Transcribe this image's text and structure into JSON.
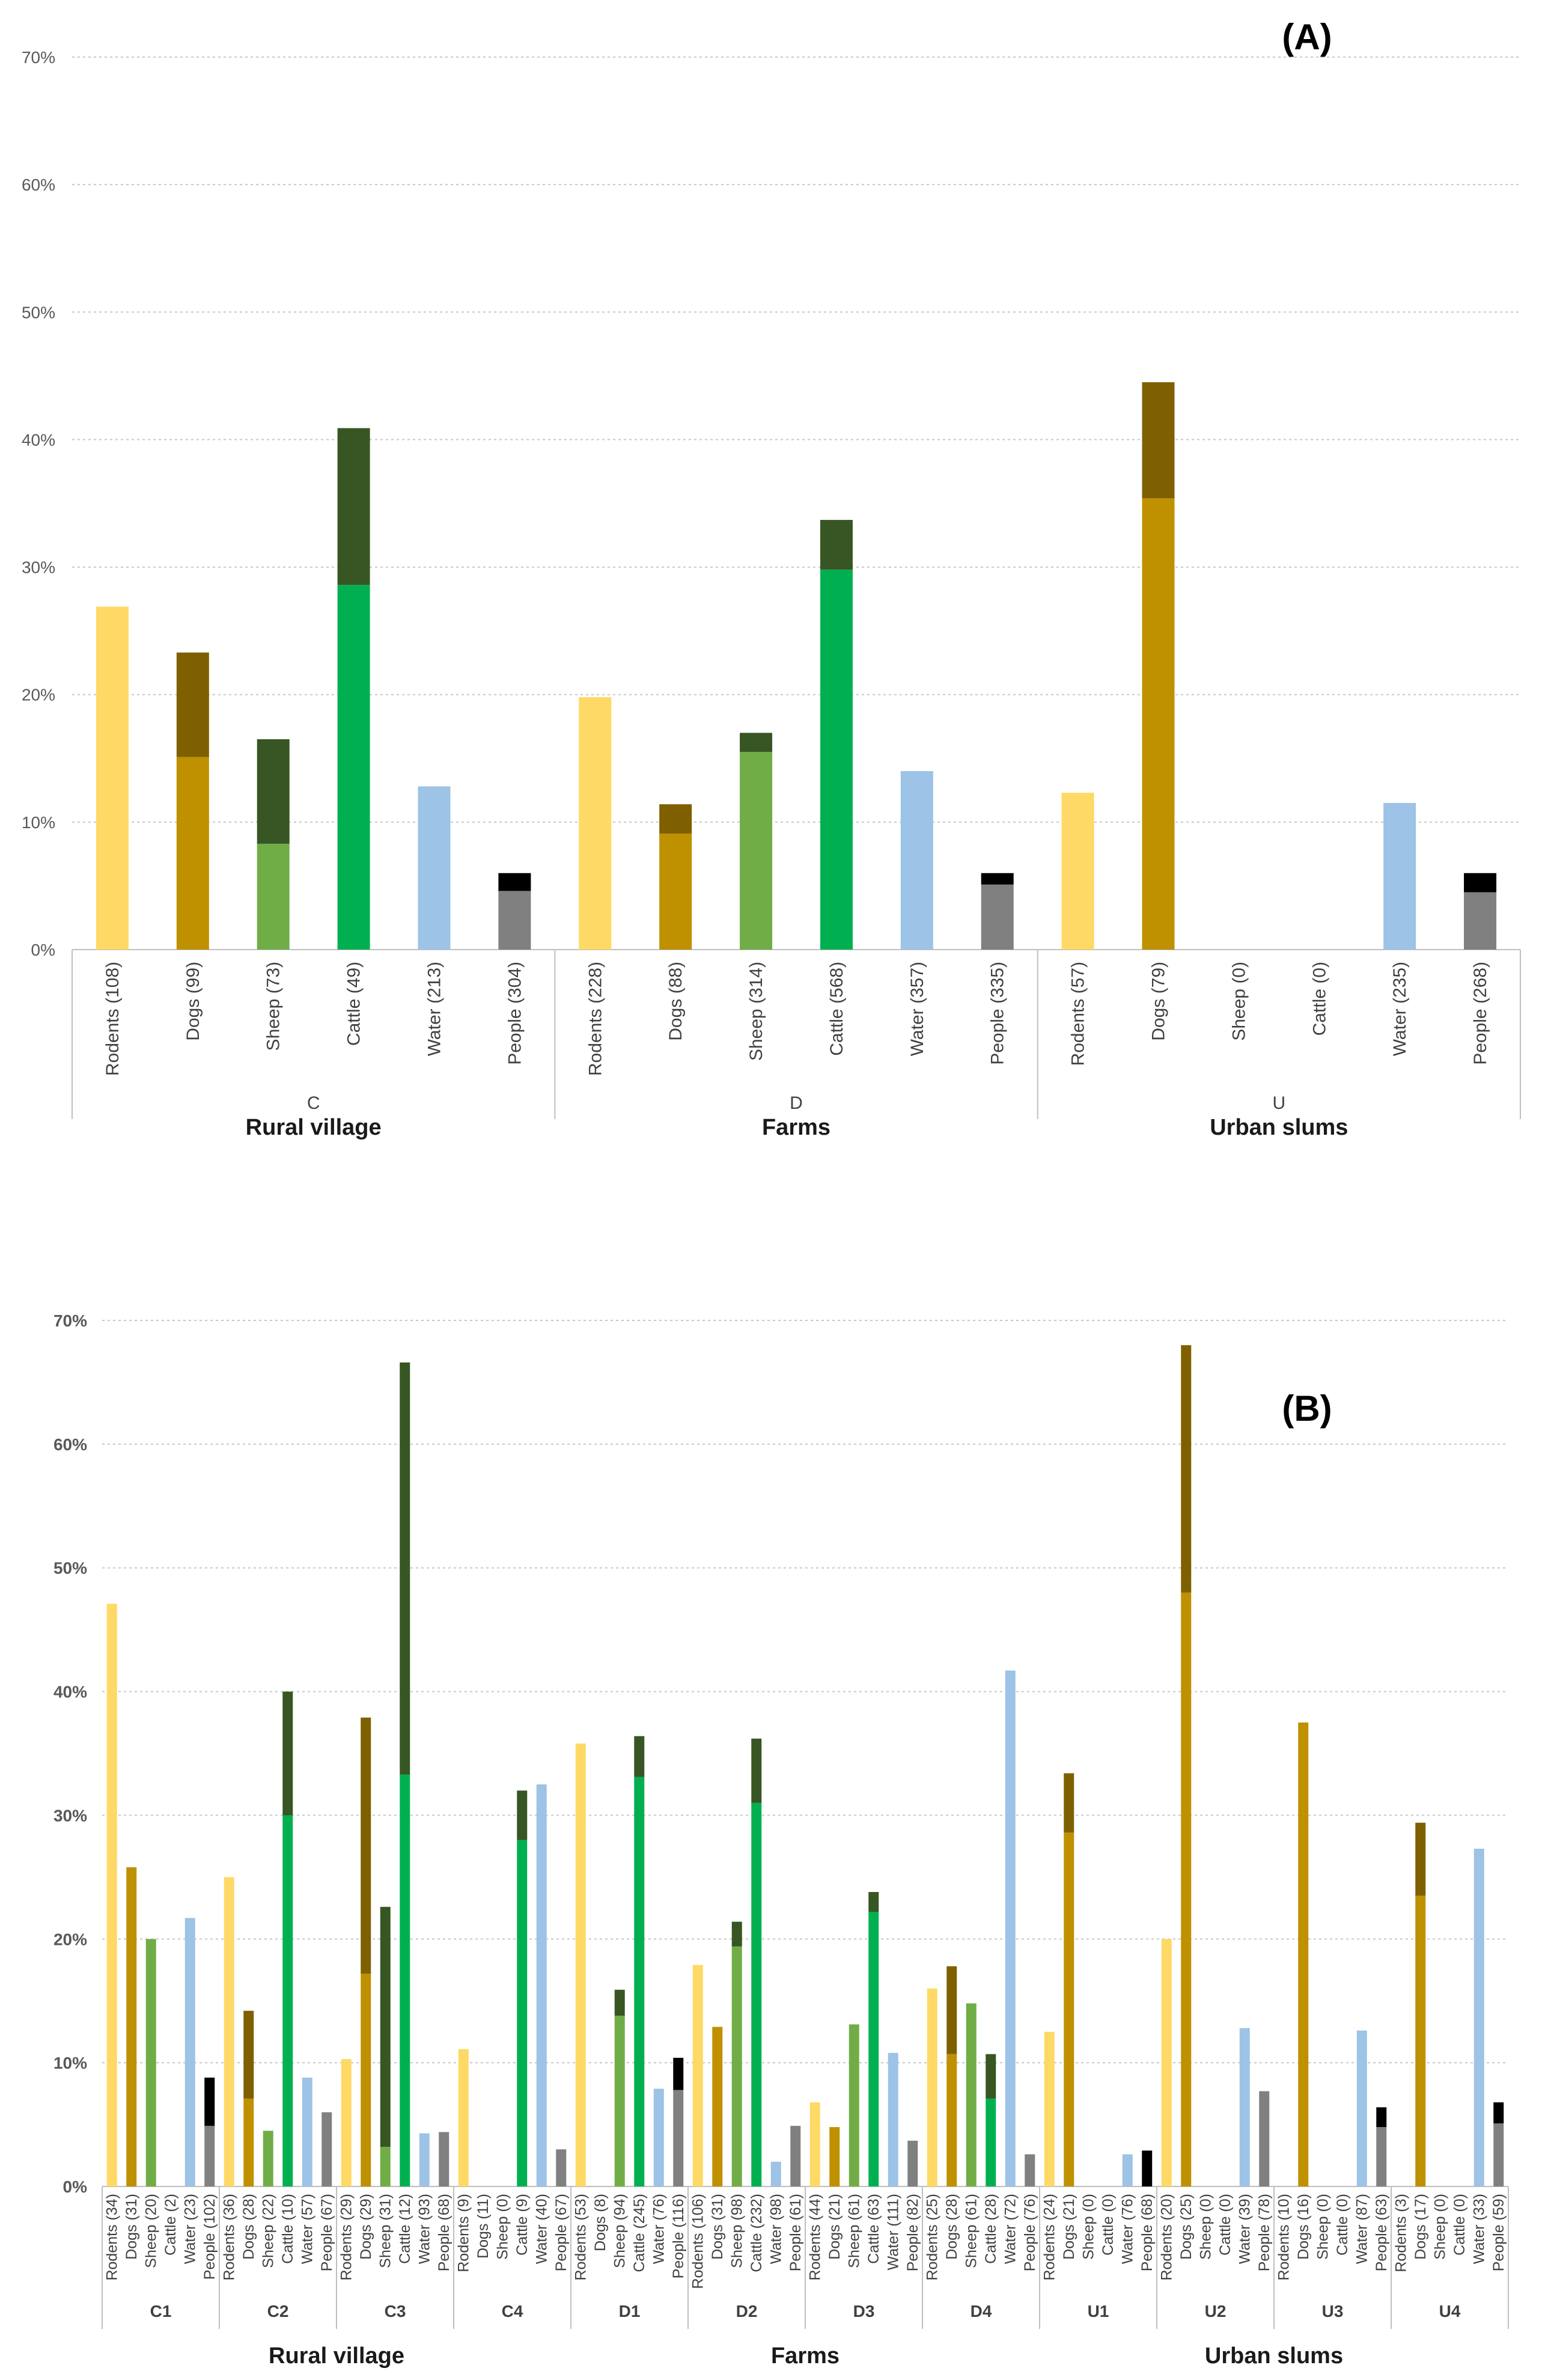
{
  "colors": {
    "Rodents": [
      "#FFD966",
      "#FFD966"
    ],
    "Dogs": [
      "#BF9000",
      "#7F6000"
    ],
    "Sheep": [
      "#70AD47",
      "#375623"
    ],
    "Cattle": [
      "#00B050",
      "#375623"
    ],
    "Water": [
      "#9DC3E6",
      "#9DC3E6"
    ],
    "People": [
      "#808080",
      "#000000"
    ]
  },
  "chart_data": [
    {
      "type": "bar",
      "stacked": true,
      "panel_label": "(A)",
      "ylim": [
        0,
        70
      ],
      "yticks": [
        "0%",
        "10%",
        "20%",
        "30%",
        "40%",
        "50%",
        "60%",
        "70%"
      ],
      "grid": true,
      "groups": [
        {
          "code": "C",
          "name": "Rural village",
          "bars": [
            {
              "label": "Rodents (108)",
              "s": "Rodents",
              "v": [
                26.9,
                0
              ]
            },
            {
              "label": "Dogs (99)",
              "s": "Dogs",
              "v": [
                15.1,
                8.2
              ]
            },
            {
              "label": "Sheep (73)",
              "s": "Sheep",
              "v": [
                8.3,
                8.2
              ]
            },
            {
              "label": "Cattle (49)",
              "s": "Cattle",
              "v": [
                28.6,
                12.3
              ]
            },
            {
              "label": "Water (213)",
              "s": "Water",
              "v": [
                12.8,
                0
              ]
            },
            {
              "label": "People (304)",
              "s": "People",
              "v": [
                4.6,
                1.4
              ]
            }
          ]
        },
        {
          "code": "D",
          "name": "Farms",
          "bars": [
            {
              "label": "Rodents (228)",
              "s": "Rodents",
              "v": [
                19.8,
                0
              ]
            },
            {
              "label": "Dogs (88)",
              "s": "Dogs",
              "v": [
                9.1,
                2.3
              ]
            },
            {
              "label": "Sheep (314)",
              "s": "Sheep",
              "v": [
                15.5,
                1.5
              ]
            },
            {
              "label": "Cattle (568)",
              "s": "Cattle",
              "v": [
                29.8,
                3.9
              ]
            },
            {
              "label": "Water (357)",
              "s": "Water",
              "v": [
                14.0,
                0
              ]
            },
            {
              "label": "People (335)",
              "s": "People",
              "v": [
                5.1,
                0.9
              ]
            }
          ]
        },
        {
          "code": "U",
          "name": "Urban slums",
          "bars": [
            {
              "label": "Rodents (57)",
              "s": "Rodents",
              "v": [
                12.3,
                0
              ]
            },
            {
              "label": "Dogs (79)",
              "s": "Dogs",
              "v": [
                35.4,
                9.1
              ]
            },
            {
              "label": "Sheep (0)",
              "s": "Sheep",
              "v": [
                0,
                0
              ]
            },
            {
              "label": "Cattle (0)",
              "s": "Cattle",
              "v": [
                0,
                0
              ]
            },
            {
              "label": "Water (235)",
              "s": "Water",
              "v": [
                11.5,
                0
              ]
            },
            {
              "label": "People (268)",
              "s": "People",
              "v": [
                4.5,
                1.5
              ]
            }
          ]
        }
      ]
    },
    {
      "type": "bar",
      "stacked": true,
      "panel_label": "(B)",
      "ylim": [
        0,
        70
      ],
      "yticks": [
        "0%",
        "10%",
        "20%",
        "30%",
        "40%",
        "50%",
        "60%",
        "70%"
      ],
      "grid": true,
      "settings": [
        {
          "name": "Rural village",
          "codes": [
            "C1",
            "C2",
            "C3",
            "C4"
          ]
        },
        {
          "name": "Farms",
          "codes": [
            "D1",
            "D2",
            "D3",
            "D4"
          ]
        },
        {
          "name": "Urban slums",
          "codes": [
            "U1",
            "U2",
            "U3",
            "U4"
          ]
        }
      ],
      "groups": [
        {
          "code": "C1",
          "bars": [
            {
              "label": "Rodents (34)",
              "s": "Rodents",
              "v": [
                47.1,
                0
              ]
            },
            {
              "label": "Dogs (31)",
              "s": "Dogs",
              "v": [
                25.8,
                0
              ]
            },
            {
              "label": "Sheep (20)",
              "s": "Sheep",
              "v": [
                20.0,
                0
              ]
            },
            {
              "label": "Cattle (2)",
              "s": "Cattle",
              "v": [
                0,
                0
              ]
            },
            {
              "label": "Water (23)",
              "s": "Water",
              "v": [
                21.7,
                0
              ]
            },
            {
              "label": "People (102)",
              "s": "People",
              "v": [
                4.9,
                3.9
              ]
            }
          ]
        },
        {
          "code": "C2",
          "bars": [
            {
              "label": "Rodents (36)",
              "s": "Rodents",
              "v": [
                25.0,
                0
              ]
            },
            {
              "label": "Dogs (28)",
              "s": "Dogs",
              "v": [
                7.1,
                7.1
              ]
            },
            {
              "label": "Sheep (22)",
              "s": "Sheep",
              "v": [
                4.5,
                0
              ]
            },
            {
              "label": "Cattle (10)",
              "s": "Cattle",
              "v": [
                30.0,
                10.0
              ]
            },
            {
              "label": "Water (57)",
              "s": "Water",
              "v": [
                8.8,
                0
              ]
            },
            {
              "label": "People (67)",
              "s": "People",
              "v": [
                6.0,
                0
              ]
            }
          ]
        },
        {
          "code": "C3",
          "bars": [
            {
              "label": "Rodents (29)",
              "s": "Rodents",
              "v": [
                10.3,
                0
              ]
            },
            {
              "label": "Dogs (29)",
              "s": "Dogs",
              "v": [
                17.2,
                20.7
              ]
            },
            {
              "label": "Sheep (31)",
              "s": "Sheep",
              "v": [
                3.2,
                19.4
              ]
            },
            {
              "label": "Cattle (12)",
              "s": "Cattle",
              "v": [
                33.3,
                33.3
              ]
            },
            {
              "label": "Water (93)",
              "s": "Water",
              "v": [
                4.3,
                0
              ]
            },
            {
              "label": "People (68)",
              "s": "People",
              "v": [
                4.4,
                0
              ]
            }
          ]
        },
        {
          "code": "C4",
          "bars": [
            {
              "label": "Rodents (9)",
              "s": "Rodents",
              "v": [
                11.1,
                0
              ]
            },
            {
              "label": "Dogs (11)",
              "s": "Dogs",
              "v": [
                0,
                0
              ]
            },
            {
              "label": "Sheep (0)",
              "s": "Sheep",
              "v": [
                0,
                0
              ]
            },
            {
              "label": "Cattle (9)",
              "s": "Cattle",
              "v": [
                28.0,
                4.0
              ]
            },
            {
              "label": "Water (40)",
              "s": "Water",
              "v": [
                32.5,
                0
              ]
            },
            {
              "label": "People (67)",
              "s": "People",
              "v": [
                3.0,
                0
              ]
            }
          ]
        },
        {
          "code": "D1",
          "bars": [
            {
              "label": "Rodents (53)",
              "s": "Rodents",
              "v": [
                35.8,
                0
              ]
            },
            {
              "label": "Dogs (8)",
              "s": "Dogs",
              "v": [
                0,
                0
              ]
            },
            {
              "label": "Sheep (94)",
              "s": "Sheep",
              "v": [
                13.8,
                2.1
              ]
            },
            {
              "label": "Cattle (245)",
              "s": "Cattle",
              "v": [
                33.1,
                3.3
              ]
            },
            {
              "label": "Water (76)",
              "s": "Water",
              "v": [
                7.9,
                0
              ]
            },
            {
              "label": "People (116)",
              "s": "People",
              "v": [
                7.8,
                2.6
              ]
            }
          ]
        },
        {
          "code": "D2",
          "bars": [
            {
              "label": "Rodents (106)",
              "s": "Rodents",
              "v": [
                17.9,
                0
              ]
            },
            {
              "label": "Dogs (31)",
              "s": "Dogs",
              "v": [
                12.9,
                0
              ]
            },
            {
              "label": "Sheep (98)",
              "s": "Sheep",
              "v": [
                19.4,
                2.0
              ]
            },
            {
              "label": "Cattle (232)",
              "s": "Cattle",
              "v": [
                31.0,
                5.2
              ]
            },
            {
              "label": "Water (98)",
              "s": "Water",
              "v": [
                2.0,
                0
              ]
            },
            {
              "label": "People (61)",
              "s": "People",
              "v": [
                4.9,
                0
              ]
            }
          ]
        },
        {
          "code": "D3",
          "bars": [
            {
              "label": "Rodents (44)",
              "s": "Rodents",
              "v": [
                6.8,
                0
              ]
            },
            {
              "label": "Dogs (21)",
              "s": "Dogs",
              "v": [
                4.8,
                0
              ]
            },
            {
              "label": "Sheep (61)",
              "s": "Sheep",
              "v": [
                13.1,
                0
              ]
            },
            {
              "label": "Cattle (63)",
              "s": "Cattle",
              "v": [
                22.2,
                1.6
              ]
            },
            {
              "label": "Water (111)",
              "s": "Water",
              "v": [
                10.8,
                0
              ]
            },
            {
              "label": "People (82)",
              "s": "People",
              "v": [
                3.7,
                0
              ]
            }
          ]
        },
        {
          "code": "D4",
          "bars": [
            {
              "label": "Rodents (25)",
              "s": "Rodents",
              "v": [
                16.0,
                0
              ]
            },
            {
              "label": "Dogs (28)",
              "s": "Dogs",
              "v": [
                10.7,
                7.1
              ]
            },
            {
              "label": "Sheep (61)",
              "s": "Sheep",
              "v": [
                14.8,
                0
              ]
            },
            {
              "label": "Cattle (28)",
              "s": "Cattle",
              "v": [
                7.1,
                3.6
              ]
            },
            {
              "label": "Water (72)",
              "s": "Water",
              "v": [
                41.7,
                0
              ]
            },
            {
              "label": "People (76)",
              "s": "People",
              "v": [
                2.6,
                0
              ]
            }
          ]
        },
        {
          "code": "U1",
          "bars": [
            {
              "label": "Rodents (24)",
              "s": "Rodents",
              "v": [
                12.5,
                0
              ]
            },
            {
              "label": "Dogs (21)",
              "s": "Dogs",
              "v": [
                28.6,
                4.8
              ]
            },
            {
              "label": "Sheep (0)",
              "s": "Sheep",
              "v": [
                0,
                0
              ]
            },
            {
              "label": "Cattle (0)",
              "s": "Cattle",
              "v": [
                0,
                0
              ]
            },
            {
              "label": "Water (76)",
              "s": "Water",
              "v": [
                2.6,
                0
              ]
            },
            {
              "label": "People (68)",
              "s": "People",
              "v": [
                0,
                2.9
              ]
            }
          ]
        },
        {
          "code": "U2",
          "bars": [
            {
              "label": "Rodents (20)",
              "s": "Rodents",
              "v": [
                20.0,
                0
              ]
            },
            {
              "label": "Dogs (25)",
              "s": "Dogs",
              "v": [
                48.0,
                20.0
              ]
            },
            {
              "label": "Sheep (0)",
              "s": "Sheep",
              "v": [
                0,
                0
              ]
            },
            {
              "label": "Cattle (0)",
              "s": "Cattle",
              "v": [
                0,
                0
              ]
            },
            {
              "label": "Water (39)",
              "s": "Water",
              "v": [
                12.8,
                0
              ]
            },
            {
              "label": "People (78)",
              "s": "People",
              "v": [
                7.7,
                0
              ]
            }
          ]
        },
        {
          "code": "U3",
          "bars": [
            {
              "label": "Rodents (10)",
              "s": "Rodents",
              "v": [
                0,
                0
              ]
            },
            {
              "label": "Dogs (16)",
              "s": "Dogs",
              "v": [
                37.5,
                0
              ]
            },
            {
              "label": "Sheep (0)",
              "s": "Sheep",
              "v": [
                0,
                0
              ]
            },
            {
              "label": "Cattle (0)",
              "s": "Cattle",
              "v": [
                0,
                0
              ]
            },
            {
              "label": "Water (87)",
              "s": "Water",
              "v": [
                12.6,
                0
              ]
            },
            {
              "label": "People (63)",
              "s": "People",
              "v": [
                4.8,
                1.6
              ]
            }
          ]
        },
        {
          "code": "U4",
          "bars": [
            {
              "label": "Rodents (3)",
              "s": "Rodents",
              "v": [
                0,
                0
              ]
            },
            {
              "label": "Dogs (17)",
              "s": "Dogs",
              "v": [
                23.5,
                5.9
              ]
            },
            {
              "label": "Sheep (0)",
              "s": "Sheep",
              "v": [
                0,
                0
              ]
            },
            {
              "label": "Cattle (0)",
              "s": "Cattle",
              "v": [
                0,
                0
              ]
            },
            {
              "label": "Water (33)",
              "s": "Water",
              "v": [
                27.3,
                0
              ]
            },
            {
              "label": "People (59)",
              "s": "People",
              "v": [
                5.1,
                1.7
              ]
            }
          ]
        }
      ]
    }
  ]
}
